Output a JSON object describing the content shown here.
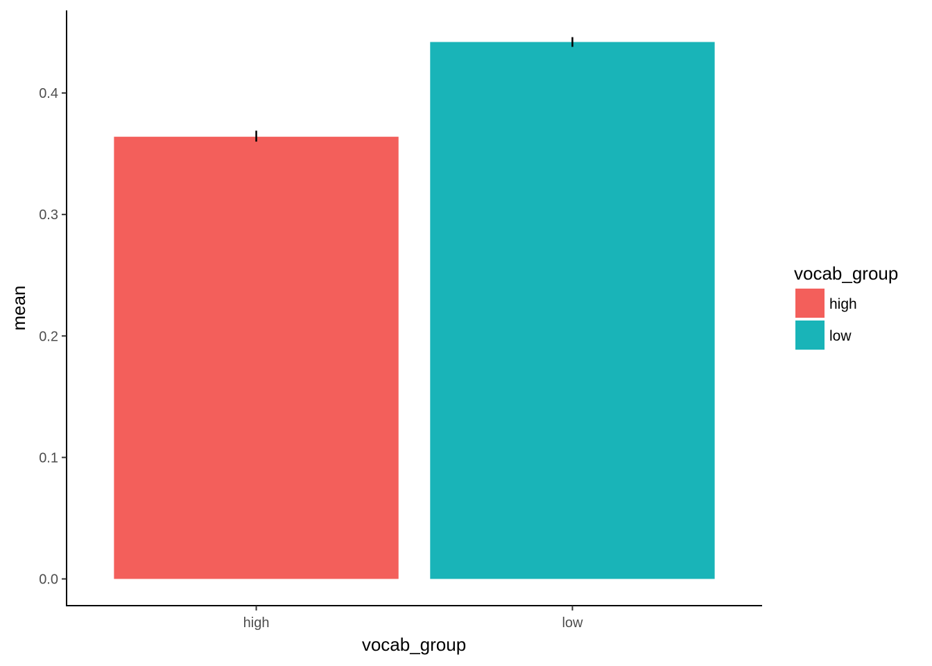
{
  "chart_data": {
    "type": "bar",
    "categories": [
      "high",
      "low"
    ],
    "values": [
      0.364,
      0.442
    ],
    "errors": [
      {
        "low": 0.36,
        "high": 0.369
      },
      {
        "low": 0.438,
        "high": 0.446
      }
    ],
    "colors": [
      "#F35F5B",
      "#19B4B8"
    ],
    "xlabel": "vocab_group",
    "ylabel": "mean",
    "ylim": [
      -0.022,
      0.468
    ],
    "yticks": [
      0.0,
      0.1,
      0.2,
      0.3,
      0.4
    ],
    "ytick_labels": [
      "0.0",
      "0.1",
      "0.2",
      "0.3",
      "0.4"
    ],
    "grid": false,
    "legend": {
      "title": "vocab_group",
      "placement": "right",
      "items": [
        {
          "label": "high",
          "color": "#F35F5B"
        },
        {
          "label": "low",
          "color": "#19B4B8"
        }
      ]
    }
  }
}
